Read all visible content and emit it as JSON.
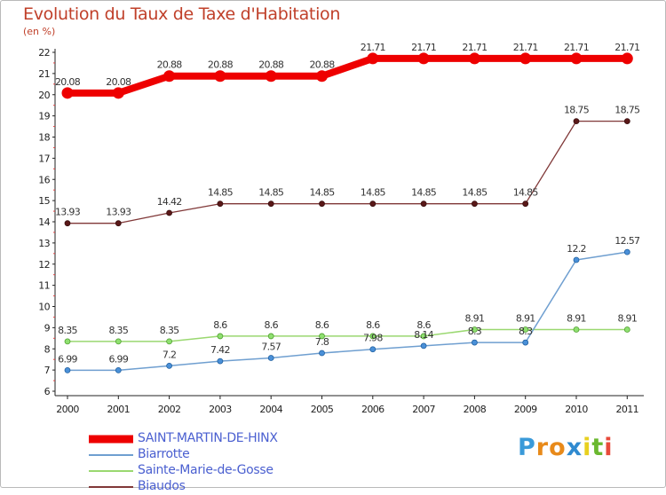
{
  "title": "Evolution du Taux de Taxe d'Habitation",
  "unit_label": "(en %)",
  "logo": {
    "text": "Proxiti",
    "letters": [
      "P",
      "r",
      "o",
      "x",
      "i",
      "t",
      "i"
    ],
    "colors": [
      "#3a9ad9",
      "#e88a1a",
      "#e88a1a",
      "#2f8ad0",
      "#e8d020",
      "#6ab82f",
      "#e84a3a"
    ]
  },
  "chart_data": {
    "type": "line",
    "title": "Evolution du Taux de Taxe d'Habitation",
    "ylabel": "(en %)",
    "xlabel": "",
    "x": [
      "2000",
      "2001",
      "2002",
      "2003",
      "2004",
      "2005",
      "2006",
      "2007",
      "2008",
      "2009",
      "2010",
      "2011"
    ],
    "ylim": [
      6,
      22
    ],
    "yticks": [
      "6",
      "7",
      "8",
      "9",
      "10",
      "11",
      "12",
      "13",
      "14",
      "15",
      "16",
      "17",
      "18",
      "19",
      "20",
      "21",
      "22"
    ],
    "grid": false,
    "legend_position": "bottom-left",
    "series": [
      {
        "name": "SAINT-MARTIN-DE-HINX",
        "color": "#ee0000",
        "values": [
          20.08,
          20.08,
          20.88,
          20.88,
          20.88,
          20.88,
          21.71,
          21.71,
          21.71,
          21.71,
          21.71,
          21.71
        ],
        "labels": [
          "20.08",
          "20.08",
          "20.88",
          "20.88",
          "20.88",
          "20.88",
          "21.71",
          "21.71",
          "21.71",
          "21.71",
          "21.71",
          "21.71"
        ]
      },
      {
        "name": "Biarrotte",
        "color": "#6f9fd0",
        "values": [
          6.99,
          6.99,
          7.2,
          7.42,
          7.57,
          7.8,
          7.98,
          8.14,
          8.3,
          8.3,
          12.2,
          12.57
        ],
        "labels": [
          "6.99",
          "6.99",
          "7.2",
          "7.42",
          "7.57",
          "7.8",
          "7.98",
          "8.14",
          "8.3",
          "8.3",
          "12.2",
          "12.57"
        ]
      },
      {
        "name": "Sainte-Marie-de-Gosse",
        "color": "#9ad870",
        "values": [
          8.35,
          8.35,
          8.35,
          8.6,
          8.6,
          8.6,
          8.6,
          8.6,
          8.91,
          8.91,
          8.91,
          8.91
        ],
        "labels": [
          "8.35",
          "8.35",
          "8.35",
          "8.6",
          "8.6",
          "8.6",
          "8.6",
          "8.6",
          "8.91",
          "8.91",
          "8.91",
          "8.91"
        ]
      },
      {
        "name": "Biaudos",
        "color": "#803838",
        "values": [
          13.93,
          13.93,
          14.42,
          14.85,
          14.85,
          14.85,
          14.85,
          14.85,
          14.85,
          14.85,
          18.75,
          18.75
        ],
        "labels": [
          "13.93",
          "13.93",
          "14.42",
          "14.85",
          "14.85",
          "14.85",
          "14.85",
          "14.85",
          "14.85",
          "14.85",
          "18.75",
          "18.75"
        ]
      }
    ]
  }
}
